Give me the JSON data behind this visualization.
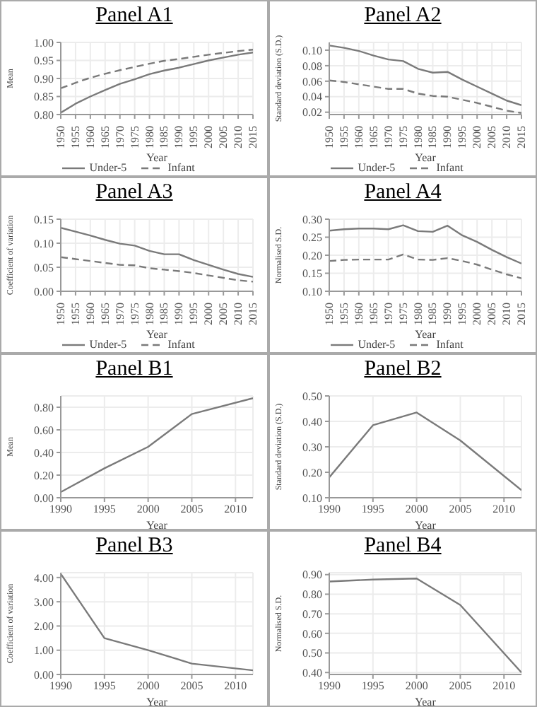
{
  "chart_data": [
    {
      "type": "line",
      "title": "Panel A1",
      "xlabel": "Year",
      "ylabel": "Mean",
      "x": [
        1950,
        1955,
        1960,
        1965,
        1970,
        1975,
        1980,
        1985,
        1990,
        1995,
        2000,
        2005,
        2010,
        2015
      ],
      "xlim": [
        1950,
        2015
      ],
      "xticks": [
        1950,
        1955,
        1960,
        1965,
        1970,
        1975,
        1980,
        1985,
        1990,
        1995,
        2000,
        2005,
        2010,
        2015
      ],
      "ylim": [
        0.8,
        1.0
      ],
      "yticks": [
        {
          "value": 0.8,
          "label": "0.80"
        },
        {
          "value": 0.85,
          "label": "0.85"
        },
        {
          "value": 0.9,
          "label": "0.90"
        },
        {
          "value": 0.95,
          "label": "0.95"
        },
        {
          "value": 1.0,
          "label": "1.00"
        }
      ],
      "grid": true,
      "legend": "bottom",
      "series": [
        {
          "name": "Under-5",
          "color": "#7a7a7a",
          "line_style": "solid",
          "values": [
            0.805,
            0.83,
            0.85,
            0.868,
            0.885,
            0.898,
            0.912,
            0.922,
            0.93,
            0.94,
            0.95,
            0.958,
            0.966,
            0.972
          ]
        },
        {
          "name": "Infant",
          "color": "#7a7a7a",
          "line_style": "dashed",
          "values": [
            0.873,
            0.888,
            0.902,
            0.913,
            0.923,
            0.932,
            0.941,
            0.949,
            0.954,
            0.96,
            0.966,
            0.971,
            0.976,
            0.98
          ]
        }
      ]
    },
    {
      "type": "line",
      "title": "Panel A2",
      "xlabel": "Year",
      "ylabel": "Standard deviation (S.D.)",
      "x": [
        1950,
        1955,
        1960,
        1965,
        1970,
        1975,
        1980,
        1985,
        1990,
        1995,
        2000,
        2005,
        2010,
        2015
      ],
      "xlim": [
        1950,
        2015
      ],
      "xticks": [
        1950,
        1955,
        1960,
        1965,
        1970,
        1975,
        1980,
        1985,
        1990,
        1995,
        2000,
        2005,
        2010,
        2015
      ],
      "ylim": [
        0.017,
        0.11
      ],
      "yticks": [
        {
          "value": 0.02,
          "label": "0.02"
        },
        {
          "value": 0.04,
          "label": "0.04"
        },
        {
          "value": 0.06,
          "label": "0.06"
        },
        {
          "value": 0.08,
          "label": "0.08"
        },
        {
          "value": 0.1,
          "label": "0.10"
        }
      ],
      "grid": true,
      "legend": "bottom",
      "series": [
        {
          "name": "Under-5",
          "color": "#7a7a7a",
          "line_style": "solid",
          "values": [
            0.106,
            0.103,
            0.099,
            0.093,
            0.088,
            0.086,
            0.076,
            0.071,
            0.072,
            0.062,
            0.053,
            0.044,
            0.035,
            0.029
          ]
        },
        {
          "name": "Infant",
          "color": "#7a7a7a",
          "line_style": "dashed",
          "values": [
            0.061,
            0.059,
            0.056,
            0.053,
            0.05,
            0.05,
            0.044,
            0.041,
            0.04,
            0.036,
            0.032,
            0.027,
            0.022,
            0.019
          ]
        }
      ]
    },
    {
      "type": "line",
      "title": "Panel A3",
      "xlabel": "Year",
      "ylabel": "Coefficient of variation",
      "x": [
        1950,
        1955,
        1960,
        1965,
        1970,
        1975,
        1980,
        1985,
        1990,
        1995,
        2000,
        2005,
        2010,
        2015
      ],
      "xlim": [
        1950,
        2015
      ],
      "xticks": [
        1950,
        1955,
        1960,
        1965,
        1970,
        1975,
        1980,
        1985,
        1990,
        1995,
        2000,
        2005,
        2010,
        2015
      ],
      "ylim": [
        0,
        0.15
      ],
      "yticks": [
        {
          "value": 0,
          "label": "0.00"
        },
        {
          "value": 0.05,
          "label": "0.05"
        },
        {
          "value": 0.1,
          "label": "0.10"
        },
        {
          "value": 0.15,
          "label": "0.15"
        }
      ],
      "grid": true,
      "legend": "bottom",
      "series": [
        {
          "name": "Under-5",
          "color": "#7a7a7a",
          "line_style": "solid",
          "values": [
            0.132,
            0.124,
            0.116,
            0.107,
            0.099,
            0.095,
            0.084,
            0.077,
            0.077,
            0.065,
            0.055,
            0.045,
            0.036,
            0.03
          ]
        },
        {
          "name": "Infant",
          "color": "#7a7a7a",
          "line_style": "dashed",
          "values": [
            0.071,
            0.067,
            0.063,
            0.059,
            0.055,
            0.054,
            0.048,
            0.045,
            0.042,
            0.038,
            0.033,
            0.028,
            0.023,
            0.02
          ]
        }
      ]
    },
    {
      "type": "line",
      "title": "Panel A4",
      "xlabel": "Year",
      "ylabel": "Normalised S.D.",
      "x": [
        1950,
        1955,
        1960,
        1965,
        1970,
        1975,
        1980,
        1985,
        1990,
        1995,
        2000,
        2005,
        2010,
        2015
      ],
      "xlim": [
        1950,
        2015
      ],
      "xticks": [
        1950,
        1955,
        1960,
        1965,
        1970,
        1975,
        1980,
        1985,
        1990,
        1995,
        2000,
        2005,
        2010,
        2015
      ],
      "ylim": [
        0.1,
        0.3
      ],
      "yticks": [
        {
          "value": 0.1,
          "label": "0.10"
        },
        {
          "value": 0.15,
          "label": "0.15"
        },
        {
          "value": 0.2,
          "label": "0.20"
        },
        {
          "value": 0.25,
          "label": "0.25"
        },
        {
          "value": 0.3,
          "label": "0.30"
        }
      ],
      "grid": true,
      "legend": "bottom",
      "series": [
        {
          "name": "Under-5",
          "color": "#7a7a7a",
          "line_style": "solid",
          "values": [
            0.268,
            0.272,
            0.274,
            0.274,
            0.272,
            0.283,
            0.267,
            0.265,
            0.282,
            0.255,
            0.237,
            0.215,
            0.195,
            0.177
          ]
        },
        {
          "name": "Infant",
          "color": "#7a7a7a",
          "line_style": "dashed",
          "values": [
            0.184,
            0.187,
            0.188,
            0.188,
            0.188,
            0.202,
            0.188,
            0.187,
            0.192,
            0.184,
            0.174,
            0.16,
            0.147,
            0.136
          ]
        }
      ]
    },
    {
      "type": "line",
      "title": "Panel B1",
      "xlabel": "Year",
      "ylabel": "Mean",
      "x": [
        1990,
        1995,
        2000,
        2005,
        2012
      ],
      "xlim": [
        1990,
        2012
      ],
      "xticks": [
        1990,
        1995,
        2000,
        2005,
        2010
      ],
      "ylim": [
        0,
        0.9
      ],
      "yticks": [
        {
          "value": 0,
          "label": "0.00"
        },
        {
          "value": 0.2,
          "label": "0.20"
        },
        {
          "value": 0.4,
          "label": "0.40"
        },
        {
          "value": 0.6,
          "label": "0.60"
        },
        {
          "value": 0.8,
          "label": "0.80"
        }
      ],
      "grid": true,
      "series": [
        {
          "color": "#7a7a7a",
          "line_style": "solid",
          "values": [
            0.05,
            0.26,
            0.45,
            0.74,
            0.88
          ]
        }
      ]
    },
    {
      "type": "line",
      "title": "Panel B2",
      "xlabel": "Year",
      "ylabel": "Standard deviation (S.D.)",
      "x": [
        1990,
        1995,
        2000,
        2005,
        2012
      ],
      "xlim": [
        1990,
        2012
      ],
      "xticks": [
        1990,
        1995,
        2000,
        2005,
        2010
      ],
      "ylim": [
        0.1,
        0.5
      ],
      "yticks": [
        {
          "value": 0.1,
          "label": "0.10"
        },
        {
          "value": 0.2,
          "label": "0.20"
        },
        {
          "value": 0.3,
          "label": "0.30"
        },
        {
          "value": 0.4,
          "label": "0.40"
        },
        {
          "value": 0.5,
          "label": "0.50"
        }
      ],
      "grid": true,
      "series": [
        {
          "color": "#7a7a7a",
          "line_style": "solid",
          "values": [
            0.18,
            0.385,
            0.435,
            0.325,
            0.13
          ]
        }
      ]
    },
    {
      "type": "line",
      "title": "Panel B3",
      "xlabel": "Year",
      "ylabel": "Coefficient of variation",
      "x": [
        1990,
        1995,
        2000,
        2005,
        2012
      ],
      "xlim": [
        1990,
        2012
      ],
      "xticks": [
        1990,
        1995,
        2000,
        2005,
        2010
      ],
      "ylim": [
        0,
        4.2
      ],
      "yticks": [
        {
          "value": 0,
          "label": "0.00"
        },
        {
          "value": 1,
          "label": "1.00"
        },
        {
          "value": 2,
          "label": "2.00"
        },
        {
          "value": 3,
          "label": "3.00"
        },
        {
          "value": 4,
          "label": "4.00"
        }
      ],
      "grid": true,
      "series": [
        {
          "color": "#7a7a7a",
          "line_style": "solid",
          "values": [
            4.15,
            1.5,
            1.0,
            0.45,
            0.17
          ]
        }
      ]
    },
    {
      "type": "line",
      "title": "Panel B4",
      "xlabel": "Year",
      "ylabel": "Normalised S.D.",
      "x": [
        1990,
        1995,
        2000,
        2005,
        2012
      ],
      "xlim": [
        1990,
        2012
      ],
      "xticks": [
        1990,
        1995,
        2000,
        2005,
        2010
      ],
      "ylim": [
        0.39,
        0.91
      ],
      "yticks": [
        {
          "value": 0.4,
          "label": "0.40"
        },
        {
          "value": 0.5,
          "label": "0.50"
        },
        {
          "value": 0.6,
          "label": "0.60"
        },
        {
          "value": 0.7,
          "label": "0.70"
        },
        {
          "value": 0.8,
          "label": "0.80"
        },
        {
          "value": 0.9,
          "label": "0.90"
        }
      ],
      "grid": true,
      "series": [
        {
          "color": "#7a7a7a",
          "line_style": "solid",
          "values": [
            0.865,
            0.875,
            0.88,
            0.745,
            0.4
          ]
        }
      ]
    }
  ]
}
